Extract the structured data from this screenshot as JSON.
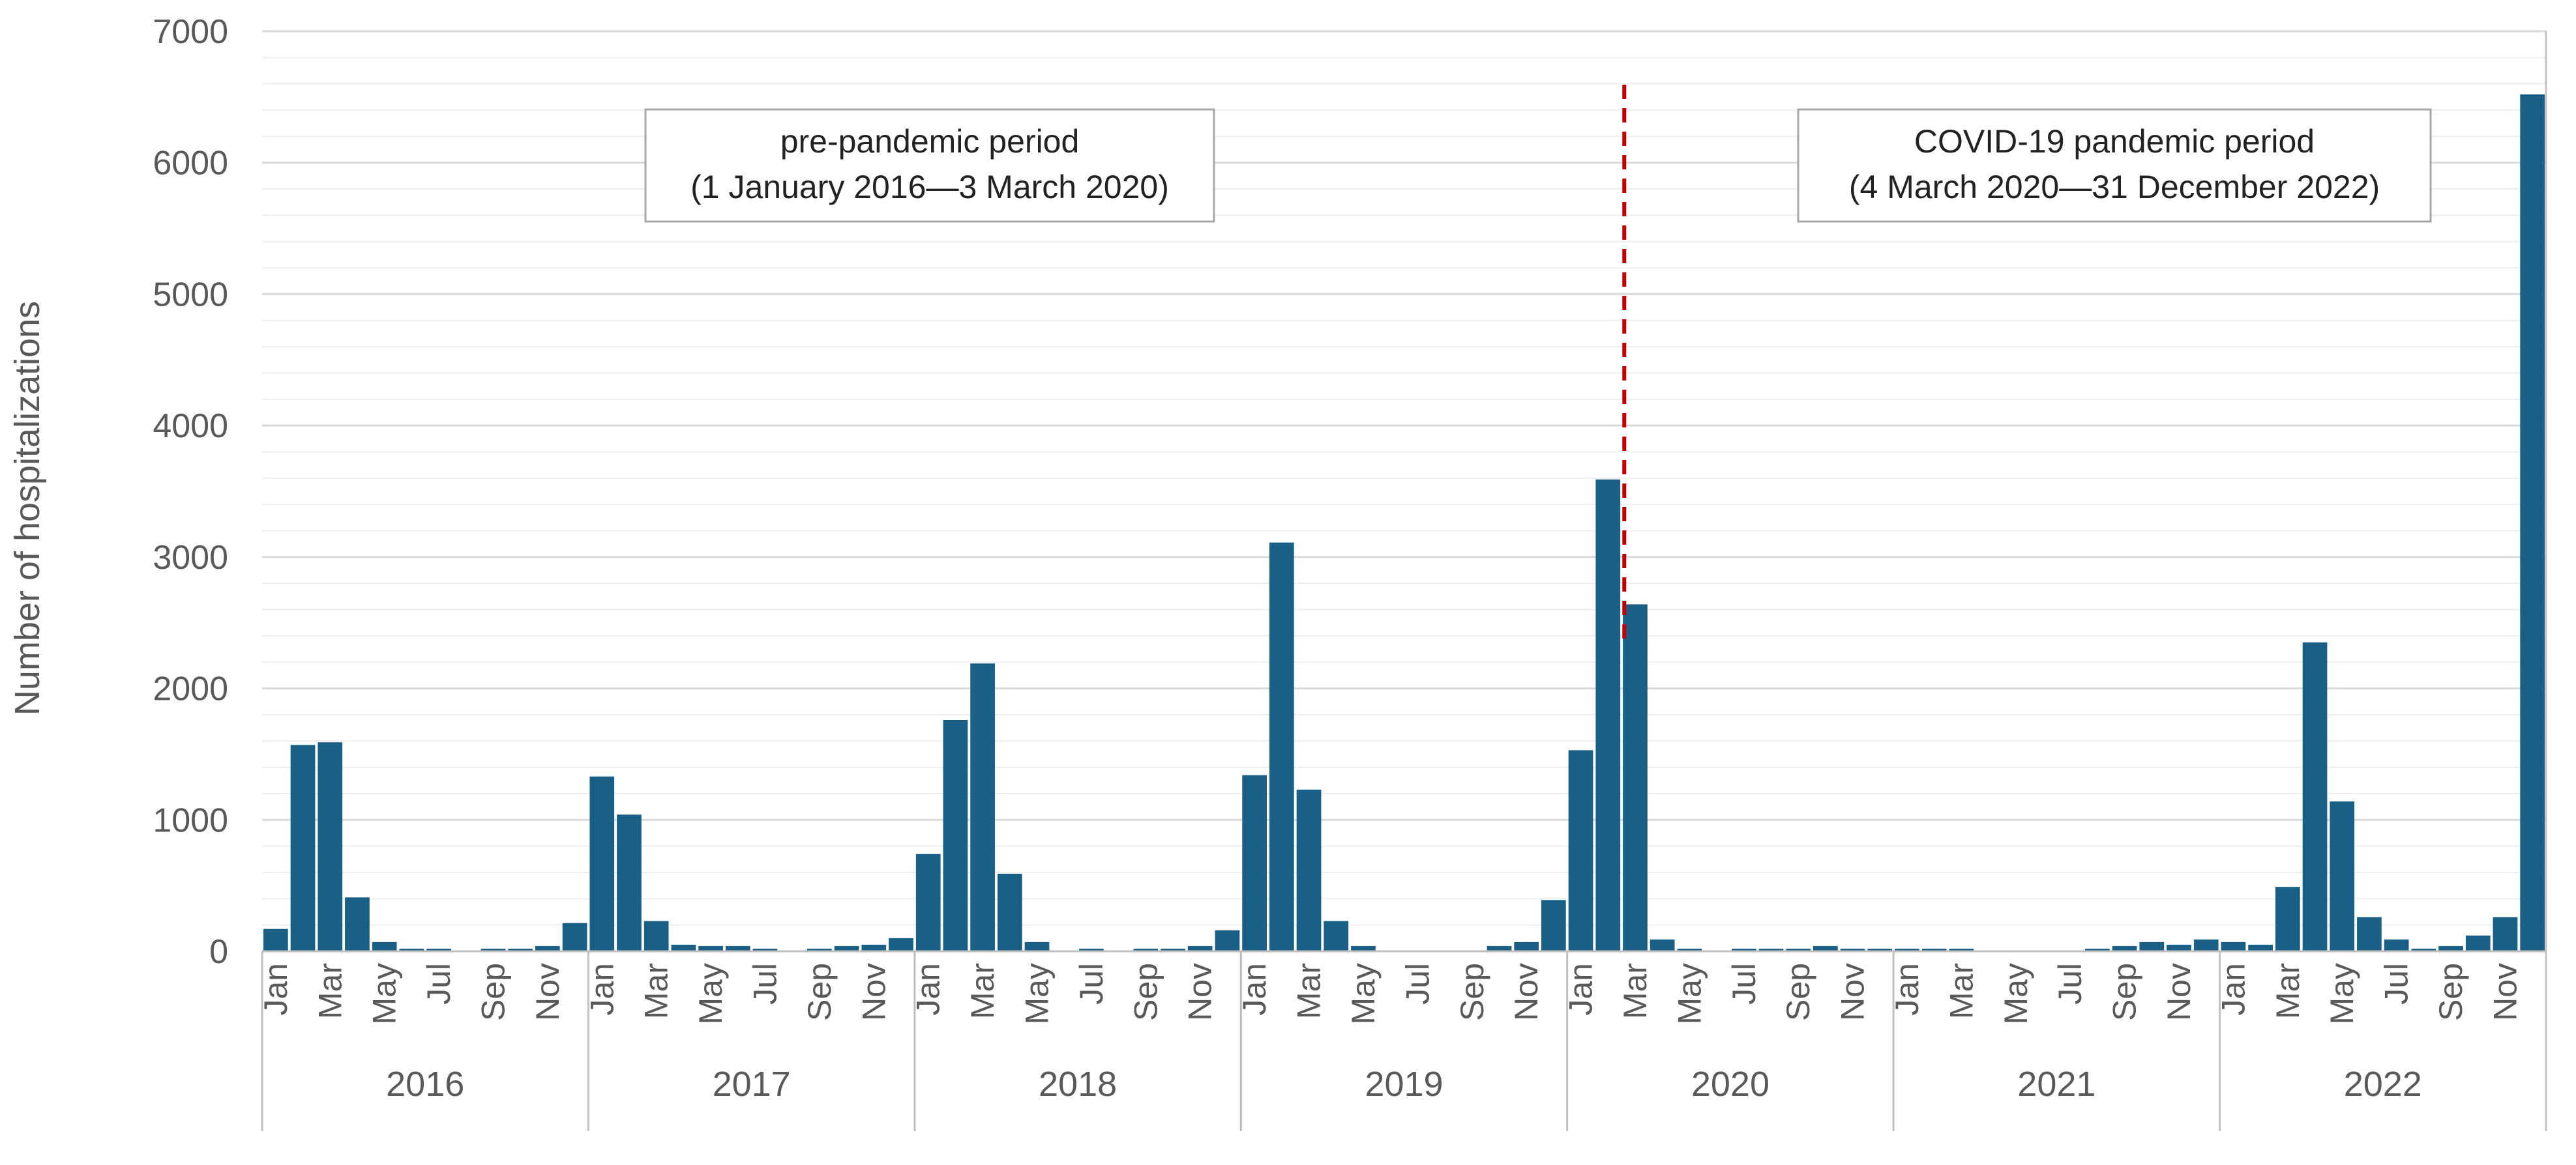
{
  "chart_data": {
    "type": "bar",
    "ylabel": "Number of hospitalizations",
    "ylim": [
      0,
      7000
    ],
    "yticks": [
      0,
      1000,
      2000,
      3000,
      4000,
      5000,
      6000,
      7000
    ],
    "grid": {
      "major": true,
      "minor_step": 200
    },
    "colors": {
      "bar": "#1a6086",
      "grid_major": "#d9d9d9",
      "grid_minor": "#eeeeee",
      "marker": "#c00000",
      "frame": "#bfbfbf"
    },
    "years": [
      {
        "year": "2016",
        "values": [
          170,
          1570,
          1590,
          410,
          70,
          20,
          20,
          5,
          20,
          20,
          40,
          215
        ]
      },
      {
        "year": "2017",
        "values": [
          1330,
          1040,
          230,
          50,
          40,
          40,
          20,
          5,
          20,
          40,
          50,
          100
        ]
      },
      {
        "year": "2018",
        "values": [
          740,
          1760,
          2190,
          590,
          70,
          5,
          20,
          5,
          20,
          20,
          40,
          160
        ]
      },
      {
        "year": "2019",
        "values": [
          1340,
          3110,
          1230,
          230,
          40,
          5,
          5,
          5,
          5,
          40,
          70,
          390
        ]
      },
      {
        "year": "2020",
        "values": [
          1530,
          3590,
          2640,
          90,
          20,
          5,
          20,
          20,
          20,
          40,
          20,
          20
        ]
      },
      {
        "year": "2021",
        "values": [
          20,
          20,
          20,
          5,
          5,
          5,
          5,
          20,
          40,
          70,
          50,
          90
        ]
      },
      {
        "year": "2022",
        "values": [
          70,
          50,
          490,
          2350,
          1140,
          260,
          90,
          20,
          40,
          120,
          260,
          6520
        ]
      }
    ],
    "month_tick_labels": [
      "Jan",
      "",
      "Mar",
      "",
      "May",
      "",
      "Jul",
      "",
      "Sep",
      "",
      "Nov",
      ""
    ],
    "marker_line": {
      "year_index": 4,
      "month_index": 2,
      "fraction": 0.1
    },
    "annotations": [
      {
        "line1": "pre-pandemic period",
        "line2": "(1 January 2016—3 March 2020)"
      },
      {
        "line1": "COVID-19 pandemic period",
        "line2": "(4 March 2020—31 December 2022)"
      }
    ]
  }
}
